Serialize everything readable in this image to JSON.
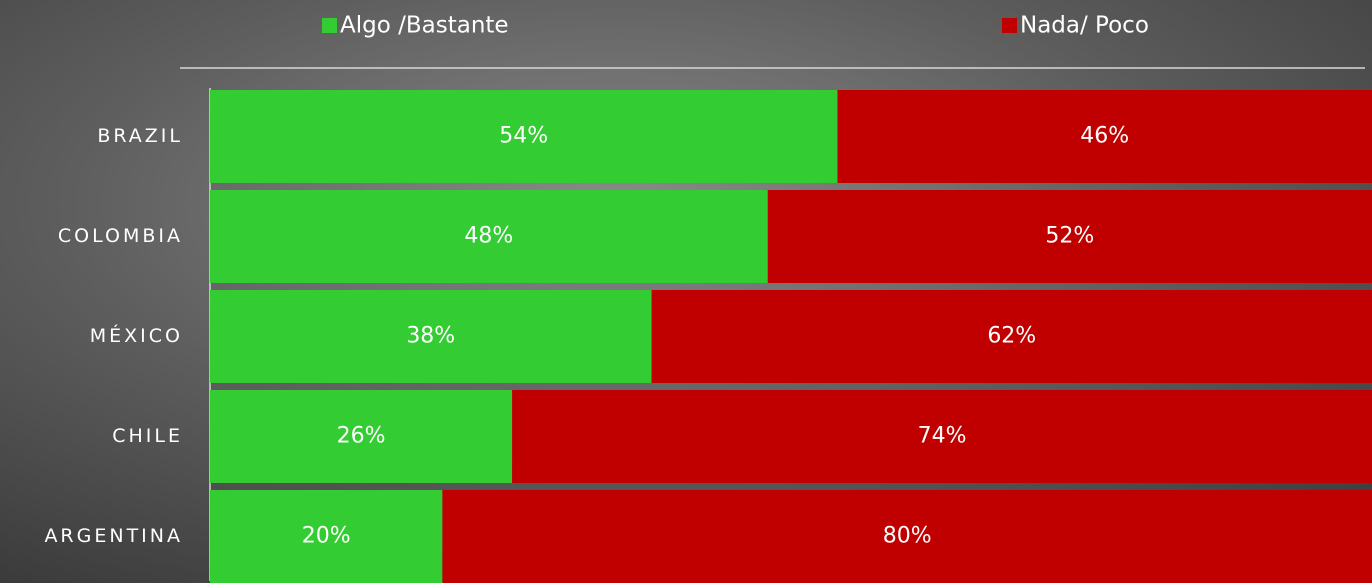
{
  "chart_data": {
    "type": "stacked_barh",
    "categories": [
      "BRAZIL",
      "COLOMBIA",
      "MÉXICO",
      "CHILE",
      "ARGENTINA"
    ],
    "series": [
      {
        "name": "Algo /Bastante",
        "color": "#33cc33",
        "values": [
          54,
          48,
          38,
          26,
          20
        ],
        "value_labels": [
          "54%",
          "48%",
          "38%",
          "26%",
          "20%"
        ]
      },
      {
        "name": "Nada/ Poco",
        "color": "#c00000",
        "values": [
          46,
          52,
          62,
          74,
          80
        ],
        "value_labels": [
          "46%",
          "52%",
          "62%",
          "74%",
          "80%"
        ]
      }
    ],
    "xlim": [
      0,
      100
    ],
    "legend": "top"
  }
}
